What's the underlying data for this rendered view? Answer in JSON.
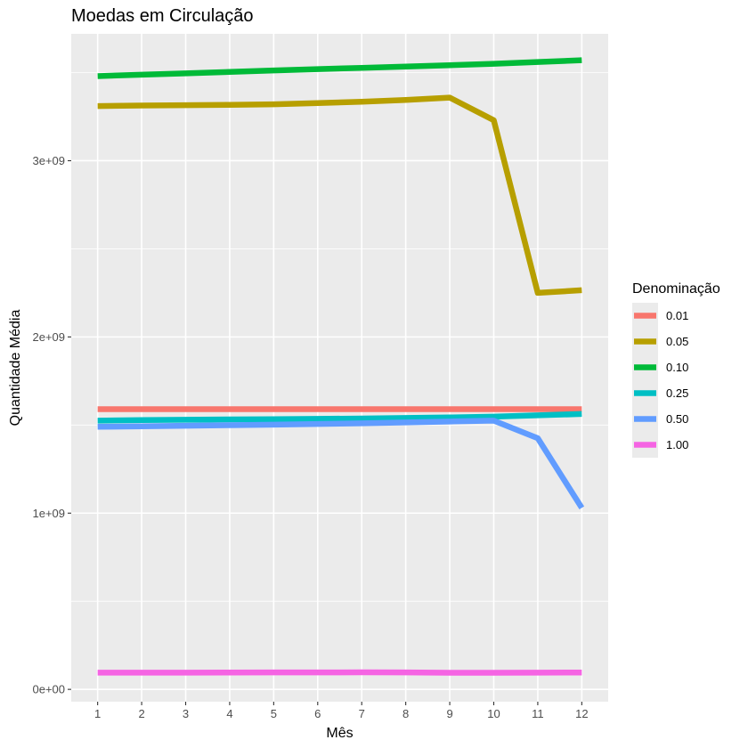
{
  "chart_data": {
    "type": "line",
    "title": "Moedas em Circulação",
    "xlabel": "Mês",
    "ylabel": "Quantidade Média",
    "x": [
      1,
      2,
      3,
      4,
      5,
      6,
      7,
      8,
      9,
      10,
      11,
      12
    ],
    "xlim": [
      0.4,
      12.6
    ],
    "ylim": [
      -70000000,
      3720000000
    ],
    "y_ticks": [
      0,
      1000000000,
      2000000000,
      3000000000
    ],
    "y_tick_labels": [
      "0e+00",
      "1e+09",
      "2e+09",
      "3e+09"
    ],
    "x_tick_labels": [
      "1",
      "2",
      "3",
      "4",
      "5",
      "6",
      "7",
      "8",
      "9",
      "10",
      "11",
      "12"
    ],
    "grid": true,
    "background": "#ebebeb",
    "legend": {
      "title": "Denominação",
      "position": "right"
    },
    "series": [
      {
        "name": "0.01",
        "color": "#F8766D",
        "values": [
          1590000000,
          1590000000,
          1590000000,
          1590000000,
          1590000000,
          1590000000,
          1590000000,
          1590000000,
          1590000000,
          1590000000,
          1590000000,
          1590000000
        ]
      },
      {
        "name": "0.05",
        "color": "#B79F00",
        "values": [
          3310000000,
          3313000000,
          3315000000,
          3317000000,
          3320000000,
          3327000000,
          3335000000,
          3345000000,
          3358000000,
          3230000000,
          2250000000,
          2265000000
        ]
      },
      {
        "name": "0.10",
        "color": "#00BA38",
        "values": [
          3480000000,
          3488000000,
          3496000000,
          3504000000,
          3512000000,
          3520000000,
          3527000000,
          3534000000,
          3542000000,
          3550000000,
          3560000000,
          3570000000
        ]
      },
      {
        "name": "0.25",
        "color": "#00BFC4",
        "values": [
          1525000000,
          1528000000,
          1530000000,
          1532000000,
          1533000000,
          1535000000,
          1537000000,
          1540000000,
          1543000000,
          1548000000,
          1555000000,
          1563000000
        ]
      },
      {
        "name": "0.50",
        "color": "#619CFF",
        "values": [
          1490000000,
          1493000000,
          1496000000,
          1499000000,
          1502000000,
          1506000000,
          1510000000,
          1515000000,
          1520000000,
          1525000000,
          1425000000,
          1030000000
        ]
      },
      {
        "name": "1.00",
        "color": "#F564E3",
        "values": [
          95000000,
          95000000,
          95000000,
          95500000,
          96000000,
          96000000,
          96500000,
          96000000,
          94000000,
          94000000,
          95000000,
          95500000
        ]
      }
    ]
  }
}
